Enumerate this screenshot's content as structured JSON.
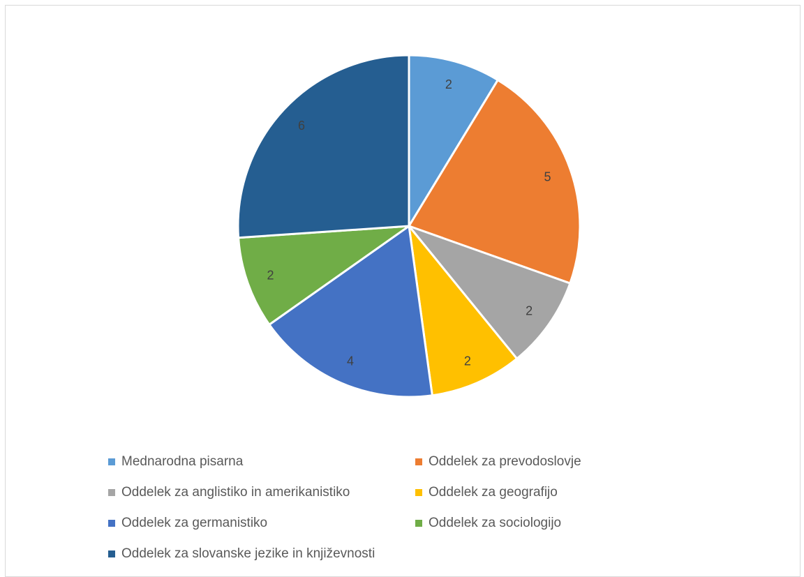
{
  "chart_data": {
    "type": "pie",
    "title": "",
    "categories": [
      "Mednarodna pisarna",
      "Oddelek za prevodoslovje",
      "Oddelek za anglistiko in amerikanistiko",
      "Oddelek za geografijo",
      "Oddelek za germanistiko",
      "Oddelek za sociologijo",
      "Oddelek za slovanske jezike in književnosti"
    ],
    "values": [
      2,
      5,
      2,
      2,
      4,
      2,
      6
    ],
    "colors": [
      "#5b9bd5",
      "#ed7d31",
      "#a5a5a5",
      "#ffc000",
      "#4472c4",
      "#70ad47",
      "#255e91"
    ],
    "data_labels": [
      "2",
      "5",
      "2",
      "2",
      "4",
      "2",
      "6"
    ],
    "legend_position": "bottom",
    "start_angle": "12 o'clock",
    "direction": "clockwise"
  }
}
